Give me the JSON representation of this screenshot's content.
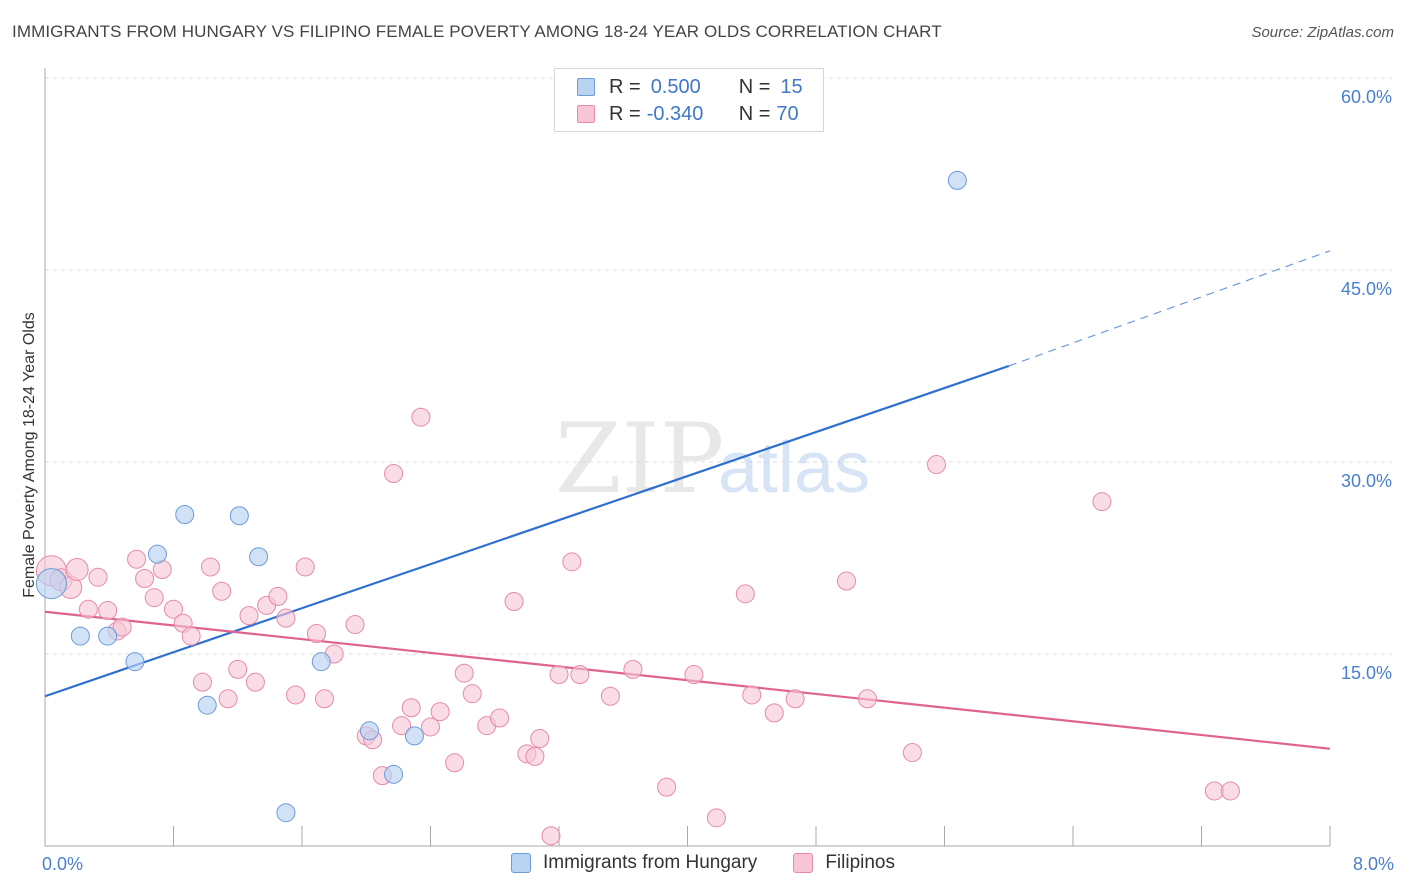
{
  "title": "IMMIGRANTS FROM HUNGARY VS FILIPINO FEMALE POVERTY AMONG 18-24 YEAR OLDS CORRELATION CHART",
  "source": "Source: ZipAtlas.com",
  "watermark": {
    "zip": "ZIP",
    "atlas": "atlas"
  },
  "legend_top": [
    {
      "r_label": "R =",
      "r_value": "0.500",
      "n_label": "N =",
      "n_value": "15"
    },
    {
      "r_label": "R =",
      "r_value": "-0.340",
      "n_label": "N =",
      "n_value": "70"
    }
  ],
  "colors": {
    "hungary_fill": "#b9d3f3",
    "hungary_stroke": "#6c9bd9",
    "hungary_line": "#2f6fce",
    "filipino_fill": "#f7c5d5",
    "filipino_stroke": "#e68aa9",
    "filipino_line": "#e0628f",
    "grid": "#dddddd",
    "tick_text": "#4a7fcf"
  },
  "chart_data": {
    "type": "scatter",
    "title": "IMMIGRANTS FROM HUNGARY VS FILIPINO FEMALE POVERTY AMONG 18-24 YEAR OLDS CORRELATION CHART",
    "xlabel": "",
    "ylabel": "Female Poverty Among 18-24 Year Olds",
    "xlim": [
      0,
      8
    ],
    "ylim": [
      0,
      60
    ],
    "x_tick_labels": [
      "0.0%",
      "8.0%"
    ],
    "y_ticks": [
      15,
      30,
      45,
      60
    ],
    "y_tick_labels": [
      "15.0%",
      "30.0%",
      "45.0%",
      "60.0%"
    ],
    "grid": true,
    "legend_position": "bottom",
    "series": [
      {
        "name": "Immigrants from Hungary",
        "points": [
          [
            0.04,
            20.5
          ],
          [
            0.22,
            16.4
          ],
          [
            0.39,
            16.4
          ],
          [
            0.56,
            14.4
          ],
          [
            0.7,
            22.8
          ],
          [
            0.87,
            25.9
          ],
          [
            1.01,
            11.0
          ],
          [
            1.21,
            25.8
          ],
          [
            1.33,
            22.6
          ],
          [
            1.5,
            2.6
          ],
          [
            1.72,
            14.4
          ],
          [
            2.02,
            9.0
          ],
          [
            2.17,
            5.6
          ],
          [
            2.3,
            8.6
          ],
          [
            5.68,
            52.0
          ]
        ],
        "trend": {
          "x": [
            0,
            6.0
          ],
          "y": [
            11.7,
            37.5
          ]
        },
        "trend_dashed": {
          "x": [
            6.0,
            8.0
          ],
          "y": [
            37.5,
            46.5
          ]
        }
      },
      {
        "name": "Filipinos",
        "points": [
          [
            0.04,
            21.5
          ],
          [
            0.1,
            20.8
          ],
          [
            0.16,
            20.2
          ],
          [
            0.2,
            21.6
          ],
          [
            0.27,
            18.5
          ],
          [
            0.33,
            21.0
          ],
          [
            0.39,
            18.4
          ],
          [
            0.45,
            16.8
          ],
          [
            0.48,
            17.1
          ],
          [
            0.57,
            22.4
          ],
          [
            0.62,
            20.9
          ],
          [
            0.68,
            19.4
          ],
          [
            0.73,
            21.6
          ],
          [
            0.8,
            18.5
          ],
          [
            0.86,
            17.4
          ],
          [
            0.91,
            16.4
          ],
          [
            0.98,
            12.8
          ],
          [
            1.03,
            21.8
          ],
          [
            1.1,
            19.9
          ],
          [
            1.14,
            11.5
          ],
          [
            1.2,
            13.8
          ],
          [
            1.27,
            18.0
          ],
          [
            1.31,
            12.8
          ],
          [
            1.38,
            18.8
          ],
          [
            1.45,
            19.5
          ],
          [
            1.5,
            17.8
          ],
          [
            1.56,
            11.8
          ],
          [
            1.62,
            21.8
          ],
          [
            1.69,
            16.6
          ],
          [
            1.74,
            11.5
          ],
          [
            1.8,
            15.0
          ],
          [
            1.93,
            17.3
          ],
          [
            2.0,
            8.6
          ],
          [
            2.04,
            8.3
          ],
          [
            2.1,
            5.5
          ],
          [
            2.17,
            29.1
          ],
          [
            2.22,
            9.4
          ],
          [
            2.28,
            10.8
          ],
          [
            2.34,
            33.5
          ],
          [
            2.4,
            9.3
          ],
          [
            2.46,
            10.5
          ],
          [
            2.55,
            6.5
          ],
          [
            2.61,
            13.5
          ],
          [
            2.66,
            11.9
          ],
          [
            2.75,
            9.4
          ],
          [
            2.83,
            10.0
          ],
          [
            2.92,
            19.1
          ],
          [
            3.0,
            7.2
          ],
          [
            3.05,
            7.0
          ],
          [
            3.08,
            8.4
          ],
          [
            3.15,
            0.8
          ],
          [
            3.2,
            13.4
          ],
          [
            3.28,
            22.2
          ],
          [
            3.33,
            13.4
          ],
          [
            3.52,
            11.7
          ],
          [
            3.66,
            13.8
          ],
          [
            3.87,
            4.6
          ],
          [
            4.04,
            13.4
          ],
          [
            4.18,
            2.2
          ],
          [
            4.36,
            19.7
          ],
          [
            4.4,
            11.8
          ],
          [
            4.54,
            10.4
          ],
          [
            4.67,
            11.5
          ],
          [
            4.99,
            20.7
          ],
          [
            5.12,
            11.5
          ],
          [
            5.4,
            7.3
          ],
          [
            5.55,
            29.8
          ],
          [
            6.58,
            26.9
          ],
          [
            7.28,
            4.3
          ],
          [
            7.38,
            4.3
          ]
        ],
        "trend": {
          "x": [
            0,
            8.0
          ],
          "y": [
            18.3,
            7.6
          ]
        }
      }
    ]
  }
}
